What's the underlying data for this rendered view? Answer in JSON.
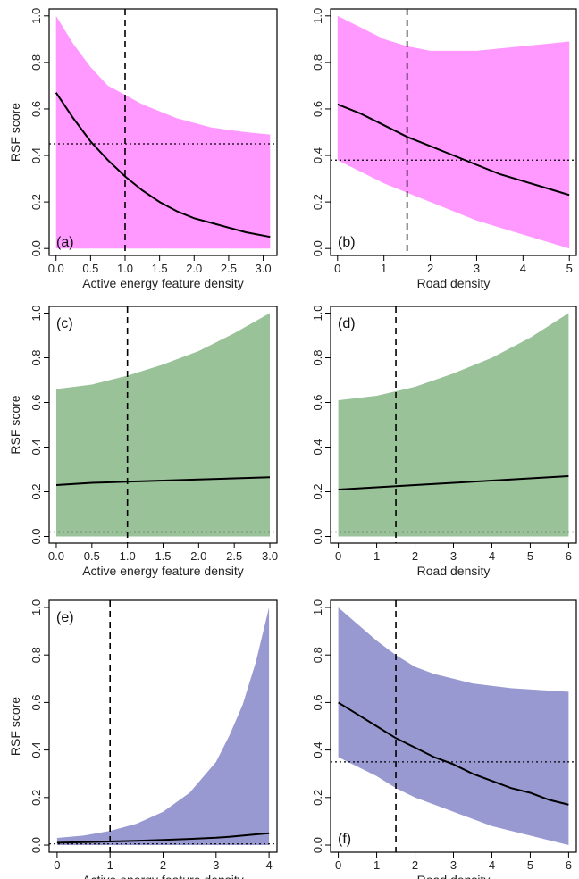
{
  "chart_data": [
    {
      "id": "a",
      "type": "line",
      "panel_label": "(a)",
      "xlabel": "Active energy feature density",
      "ylabel": "RSF score",
      "xlim": [
        -0.1,
        3.2
      ],
      "ylim": [
        -0.03,
        1.03
      ],
      "xticks": [
        0,
        0.5,
        1,
        1.5,
        2,
        2.5,
        3
      ],
      "xtick_labels": [
        "0.0",
        "0.5",
        "1.0",
        "1.5",
        "2.0",
        "2.5",
        "3.0"
      ],
      "yticks": [
        0,
        0.2,
        0.4,
        0.6,
        0.8,
        1
      ],
      "ytick_labels": [
        "0.0",
        "0.2",
        "0.4",
        "0.6",
        "0.8",
        "1.0"
      ],
      "fill_color": "#ff99ff",
      "vline": 1.0,
      "hline": 0.45,
      "series": [
        {
          "x": [
            0.0,
            0.25,
            0.5,
            0.75,
            1.0,
            1.25,
            1.5,
            1.75,
            2.0,
            2.25,
            2.5,
            2.75,
            3.1
          ],
          "y": [
            0.67,
            0.56,
            0.46,
            0.38,
            0.31,
            0.25,
            0.2,
            0.16,
            0.13,
            0.11,
            0.09,
            0.07,
            0.05
          ],
          "upper": [
            1.0,
            0.88,
            0.78,
            0.7,
            0.66,
            0.62,
            0.59,
            0.56,
            0.54,
            0.52,
            0.51,
            0.5,
            0.49
          ],
          "lower": [
            0.0,
            0.0,
            0.0,
            0.0,
            0.0,
            0.0,
            0.0,
            0.0,
            0.0,
            0.0,
            0.0,
            0.0,
            0.0
          ]
        }
      ]
    },
    {
      "id": "b",
      "type": "line",
      "panel_label": "(b)",
      "xlabel": "Road density",
      "ylabel": "",
      "xlim": [
        -0.15,
        5.15
      ],
      "ylim": [
        -0.03,
        1.03
      ],
      "xticks": [
        0,
        1,
        2,
        3,
        4,
        5
      ],
      "xtick_labels": [
        "0",
        "1",
        "2",
        "3",
        "4",
        "5"
      ],
      "yticks": [
        0,
        0.2,
        0.4,
        0.6,
        0.8,
        1
      ],
      "ytick_labels": [
        "0.0",
        "0.2",
        "0.4",
        "0.6",
        "0.8",
        "1.0"
      ],
      "fill_color": "#ff99ff",
      "vline": 1.5,
      "hline": 0.38,
      "series": [
        {
          "x": [
            0,
            0.5,
            1,
            1.5,
            2,
            2.5,
            3,
            3.5,
            4,
            4.5,
            5
          ],
          "y": [
            0.62,
            0.58,
            0.53,
            0.48,
            0.44,
            0.4,
            0.36,
            0.32,
            0.29,
            0.26,
            0.23
          ],
          "upper": [
            1.0,
            0.95,
            0.9,
            0.87,
            0.85,
            0.85,
            0.85,
            0.86,
            0.87,
            0.88,
            0.89
          ],
          "lower": [
            0.38,
            0.33,
            0.28,
            0.24,
            0.2,
            0.16,
            0.12,
            0.09,
            0.06,
            0.03,
            0.0
          ]
        }
      ]
    },
    {
      "id": "c",
      "type": "line",
      "panel_label": "(c)",
      "xlabel": "Active energy feature density",
      "ylabel": "RSF score",
      "xlim": [
        -0.1,
        3.1
      ],
      "ylim": [
        -0.03,
        1.03
      ],
      "xticks": [
        0,
        0.5,
        1,
        1.5,
        2,
        2.5,
        3
      ],
      "xtick_labels": [
        "0.0",
        "0.5",
        "1.0",
        "1.5",
        "2.0",
        "2.5",
        "3.0"
      ],
      "yticks": [
        0,
        0.2,
        0.4,
        0.6,
        0.8,
        1
      ],
      "ytick_labels": [
        "0.0",
        "0.2",
        "0.4",
        "0.6",
        "0.8",
        "1.0"
      ],
      "fill_color": "#99c299",
      "vline": 1.0,
      "hline": 0.02,
      "series": [
        {
          "x": [
            0.0,
            0.5,
            1.0,
            1.5,
            2.0,
            2.5,
            3.0
          ],
          "y": [
            0.23,
            0.24,
            0.245,
            0.25,
            0.255,
            0.26,
            0.265
          ],
          "upper": [
            0.66,
            0.68,
            0.72,
            0.77,
            0.83,
            0.91,
            1.0
          ],
          "lower": [
            0.0,
            0.0,
            0.0,
            0.0,
            0.0,
            0.0,
            0.0
          ]
        }
      ]
    },
    {
      "id": "d",
      "type": "line",
      "panel_label": "(d)",
      "xlabel": "Road density",
      "ylabel": "",
      "xlim": [
        -0.2,
        6.2
      ],
      "ylim": [
        -0.03,
        1.03
      ],
      "xticks": [
        0,
        1,
        2,
        3,
        4,
        5,
        6
      ],
      "xtick_labels": [
        "0",
        "1",
        "2",
        "3",
        "4",
        "5",
        "6"
      ],
      "yticks": [
        0,
        0.2,
        0.4,
        0.6,
        0.8,
        1
      ],
      "ytick_labels": [
        "0.0",
        "0.2",
        "0.4",
        "0.6",
        "0.8",
        "1.0"
      ],
      "fill_color": "#99c299",
      "vline": 1.5,
      "hline": 0.02,
      "series": [
        {
          "x": [
            0,
            1,
            2,
            3,
            4,
            5,
            6
          ],
          "y": [
            0.21,
            0.22,
            0.23,
            0.24,
            0.25,
            0.26,
            0.27
          ],
          "upper": [
            0.61,
            0.63,
            0.67,
            0.73,
            0.8,
            0.89,
            1.0
          ],
          "lower": [
            0.0,
            0.0,
            0.0,
            0.0,
            0.0,
            0.0,
            0.0
          ]
        }
      ]
    },
    {
      "id": "e",
      "type": "line",
      "panel_label": "(e)",
      "xlabel": "Active energy feature density",
      "ylabel": "RSF score",
      "xlim": [
        -0.15,
        4.15
      ],
      "ylim": [
        -0.03,
        1.03
      ],
      "xticks": [
        0,
        1,
        2,
        3,
        4
      ],
      "xtick_labels": [
        "0",
        "1",
        "2",
        "3",
        "4"
      ],
      "yticks": [
        0,
        0.2,
        0.4,
        0.6,
        0.8,
        1
      ],
      "ytick_labels": [
        "0.0",
        "0.2",
        "0.4",
        "0.6",
        "0.8",
        "1.0"
      ],
      "fill_color": "#9999d1",
      "vline": 1.0,
      "hline": 0.005,
      "series": [
        {
          "x": [
            0,
            0.5,
            1,
            1.5,
            2,
            2.5,
            3,
            3.25,
            3.5,
            3.75,
            4
          ],
          "y": [
            0.01,
            0.012,
            0.015,
            0.018,
            0.022,
            0.026,
            0.031,
            0.035,
            0.04,
            0.045,
            0.05
          ],
          "upper": [
            0.03,
            0.04,
            0.06,
            0.09,
            0.14,
            0.22,
            0.35,
            0.46,
            0.59,
            0.77,
            1.0
          ],
          "lower": [
            0.0,
            0.0,
            0.0,
            0.0,
            0.0,
            0.0,
            0.0,
            0.0,
            0.0,
            0.0,
            0.0
          ]
        }
      ]
    },
    {
      "id": "f",
      "type": "line",
      "panel_label": "(f)",
      "xlabel": "Road density",
      "ylabel": "",
      "xlim": [
        -0.2,
        6.2
      ],
      "ylim": [
        -0.03,
        1.03
      ],
      "xticks": [
        0,
        1,
        2,
        3,
        4,
        5,
        6
      ],
      "xtick_labels": [
        "0",
        "1",
        "2",
        "3",
        "4",
        "5",
        "6"
      ],
      "yticks": [
        0,
        0.2,
        0.4,
        0.6,
        0.8,
        1
      ],
      "ytick_labels": [
        "0.0",
        "0.2",
        "0.4",
        "0.6",
        "0.8",
        "1.0"
      ],
      "fill_color": "#9999d1",
      "vline": 1.5,
      "hline": 0.35,
      "series": [
        {
          "x": [
            0,
            0.5,
            1,
            1.5,
            2,
            2.5,
            3,
            3.5,
            4,
            4.5,
            5,
            5.5,
            6
          ],
          "y": [
            0.6,
            0.55,
            0.5,
            0.45,
            0.41,
            0.37,
            0.34,
            0.3,
            0.27,
            0.24,
            0.22,
            0.19,
            0.17
          ],
          "upper": [
            1.0,
            0.93,
            0.86,
            0.8,
            0.75,
            0.72,
            0.7,
            0.68,
            0.67,
            0.66,
            0.655,
            0.65,
            0.645
          ],
          "lower": [
            0.37,
            0.33,
            0.29,
            0.24,
            0.2,
            0.17,
            0.14,
            0.11,
            0.08,
            0.06,
            0.04,
            0.02,
            0.0
          ]
        }
      ]
    }
  ]
}
